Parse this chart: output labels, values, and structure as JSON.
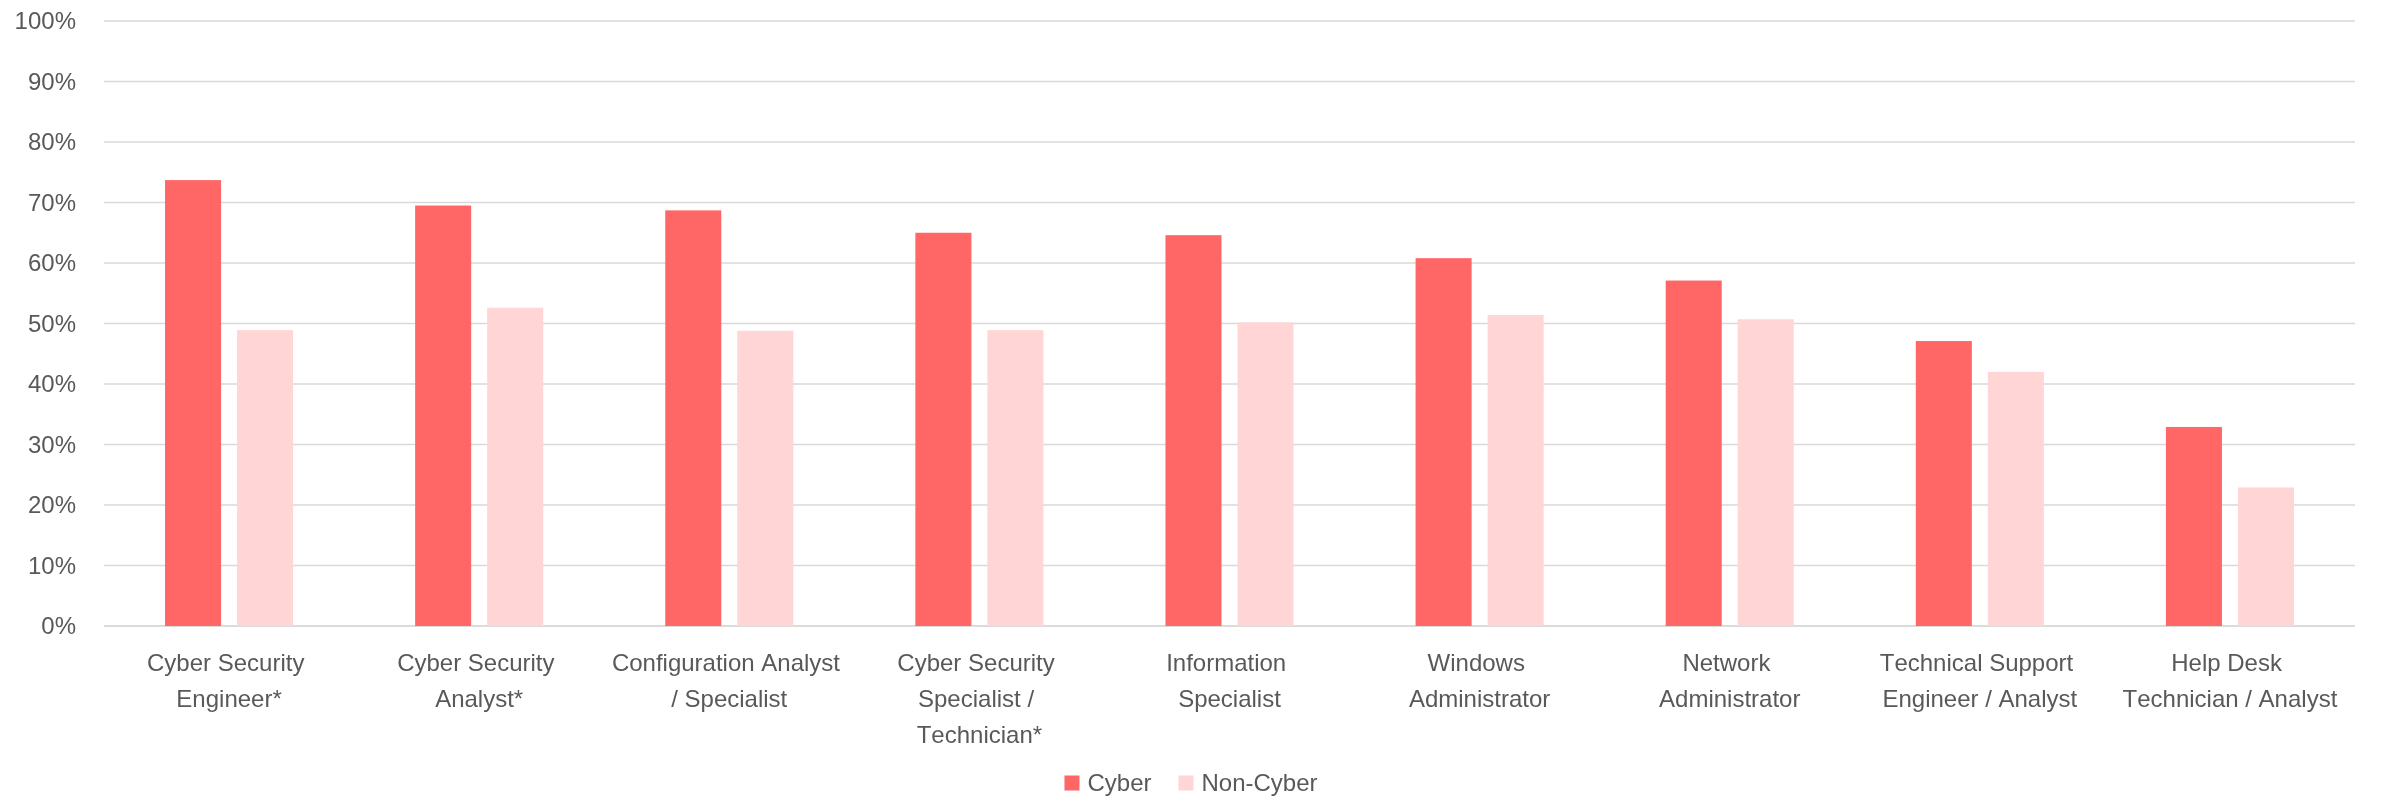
{
  "chart_data": {
    "type": "bar",
    "categories": [
      "Cyber Security Engineer*",
      "Cyber Security Analyst*",
      "Configuration Analyst / Specialist",
      "Cyber Security Specialist / Technician*",
      "Information Specialist",
      "Windows Administrator",
      "Network Administrator",
      "Technical Support Engineer / Analyst",
      "Help Desk Technician / Analyst"
    ],
    "series": [
      {
        "name": "Cyber",
        "color": "#ff6666",
        "values": [
          73.7,
          69.5,
          68.7,
          65.0,
          64.6,
          60.8,
          57.1,
          47.1,
          32.9
        ]
      },
      {
        "name": "Non-Cyber",
        "color": "#ffd5d5",
        "values": [
          48.9,
          52.6,
          48.8,
          48.9,
          50.2,
          51.4,
          50.7,
          42.0,
          22.9
        ]
      }
    ],
    "ylim": [
      0,
      100
    ],
    "yticks": [
      {
        "value": 0,
        "label": "0%"
      },
      {
        "value": 10,
        "label": "10%"
      },
      {
        "value": 20,
        "label": "20%"
      },
      {
        "value": 30,
        "label": "30%"
      },
      {
        "value": 40,
        "label": "40%"
      },
      {
        "value": 50,
        "label": "50%"
      },
      {
        "value": 60,
        "label": "60%"
      },
      {
        "value": 70,
        "label": "70%"
      },
      {
        "value": 80,
        "label": "80%"
      },
      {
        "value": 90,
        "label": "90%"
      },
      {
        "value": 100,
        "label": "100%"
      }
    ],
    "grid": "y",
    "legend": "bottom"
  }
}
